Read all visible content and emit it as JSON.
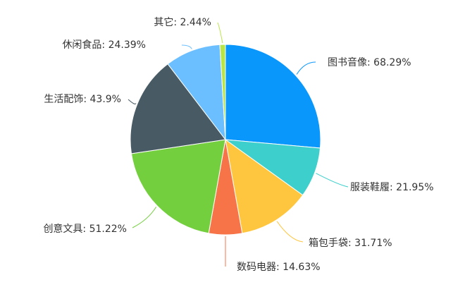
{
  "chart_data": {
    "type": "pie",
    "start_angle_deg": 90,
    "direction": "clockwise",
    "slices": [
      {
        "name": "图书音像",
        "value": 68.29,
        "text": "图书音像: 68.29%",
        "color": "#0a97fb"
      },
      {
        "name": "服装鞋履",
        "value": 21.95,
        "text": "服装鞋履: 21.95%",
        "color": "#3ccfcb"
      },
      {
        "name": "箱包手袋",
        "value": 31.71,
        "text": "箱包手袋: 31.71%",
        "color": "#fec63f"
      },
      {
        "name": "数码电器",
        "value": 14.63,
        "text": "数码电器: 14.63%",
        "color": "#f77448"
      },
      {
        "name": "创意文具",
        "value": 51.22,
        "text": "创意文具: 51.22%",
        "color": "#74cf3f"
      },
      {
        "name": "生活配饰",
        "value": 43.9,
        "text": "生活配饰: 43.9%",
        "color": "#485a64"
      },
      {
        "name": "休闲食品",
        "value": 24.39,
        "text": "休闲食品: 24.39%",
        "color": "#6cbffe"
      },
      {
        "name": "其它",
        "value": 2.44,
        "text": "其它: 2.44%",
        "color": "#b9e546"
      }
    ]
  }
}
